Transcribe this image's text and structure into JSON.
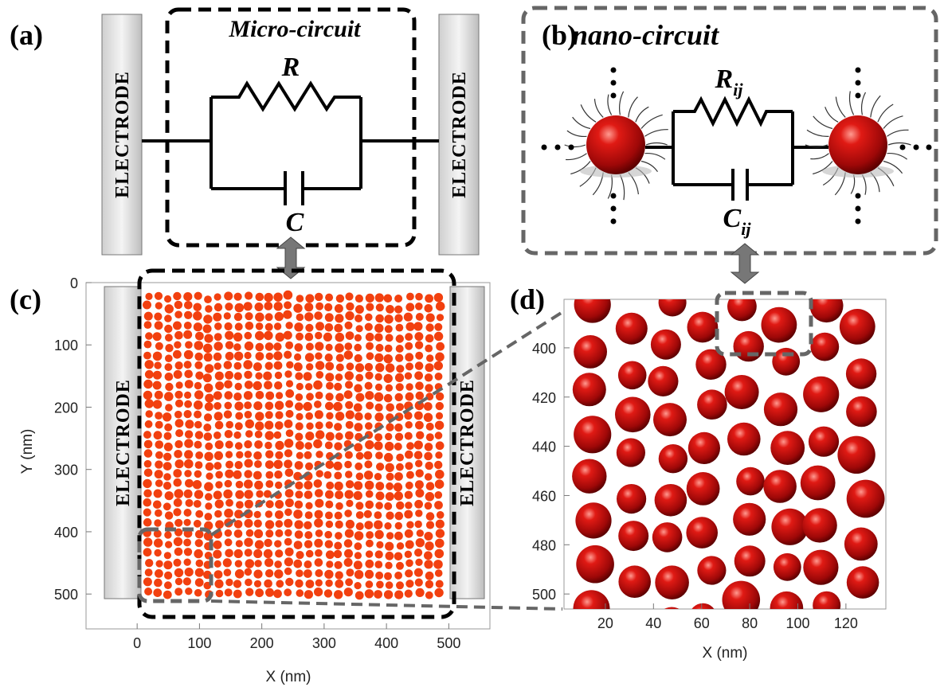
{
  "panels": {
    "a": {
      "label": "(a)",
      "title": "Micro-circuit",
      "resistor": "R",
      "capacitor": "C",
      "electrode_left": "ELECTRODE",
      "electrode_right": "ELECTRODE"
    },
    "b": {
      "label": "(b)",
      "title": "nano-circuit",
      "resistor": {
        "base": "R",
        "sub": "ij"
      },
      "capacitor": {
        "base": "C",
        "sub": "ij"
      }
    },
    "c": {
      "label": "(c)",
      "electrode_left": "ELECTRODE",
      "electrode_right": "ELECTRODE",
      "x_label": "X (nm)",
      "y_label": "Y (nm)",
      "xlim": [
        -82,
        566
      ],
      "ylim": [
        0,
        556
      ],
      "xticks": [
        0,
        100,
        200,
        300,
        400,
        500
      ],
      "yticks": [
        0,
        100,
        200,
        300,
        400,
        500
      ]
    },
    "d": {
      "label": "(d)",
      "x_label": "X (nm)",
      "xlim": [
        2.8,
        136.6
      ],
      "ylim": [
        380.3,
        506.1
      ],
      "xticks": [
        20,
        40,
        60,
        80,
        100,
        120
      ],
      "yticks": [
        400,
        420,
        440,
        460,
        480,
        500
      ]
    }
  }
}
